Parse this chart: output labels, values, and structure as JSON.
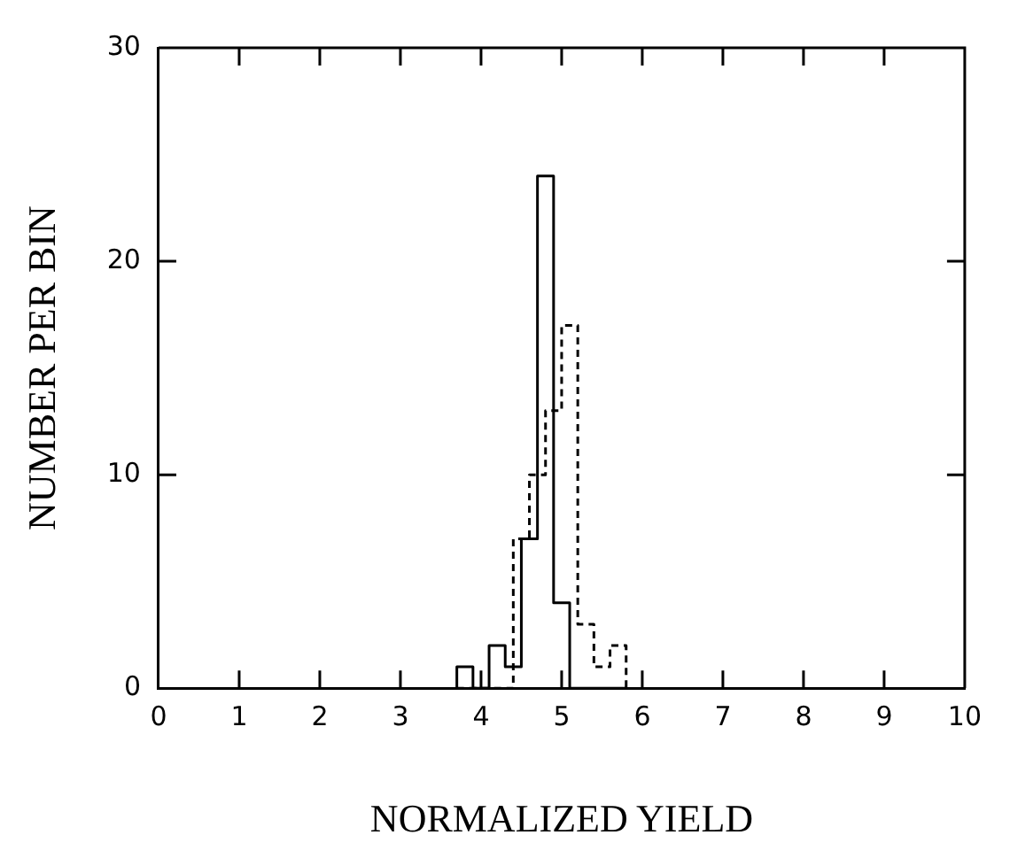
{
  "chart_data": {
    "type": "histogram",
    "xlabel": "NORMALIZED YIELD",
    "ylabel": "NUMBER PER BIN",
    "xlim": [
      0,
      10
    ],
    "xticks": [
      0,
      1,
      2,
      3,
      4,
      5,
      6,
      7,
      8,
      9,
      10
    ],
    "ylim": [
      0,
      30
    ],
    "yticks": [
      0,
      10,
      20,
      30
    ],
    "grid": false,
    "legend": false,
    "bins": [
      3.7,
      3.8,
      3.9,
      4.0,
      4.1,
      4.2,
      4.3,
      4.4,
      4.5,
      4.6,
      4.7,
      4.8,
      4.9,
      5.0,
      5.1,
      5.2,
      5.3,
      5.4,
      5.5,
      5.6,
      5.7,
      5.8
    ],
    "series": [
      {
        "color": "#000000",
        "line_style": "solid",
        "values": [
          1,
          1,
          0,
          0,
          2,
          2,
          1,
          1,
          7,
          7,
          24,
          24,
          4,
          4,
          0,
          0,
          0,
          0,
          0,
          0,
          0
        ]
      },
      {
        "color": "#000000",
        "line_style": "dashed",
        "values": [
          0,
          0,
          0,
          0,
          0,
          0,
          0,
          7,
          7,
          10,
          10,
          13,
          13,
          17,
          17,
          3,
          3,
          1,
          1,
          2,
          2
        ]
      }
    ]
  }
}
